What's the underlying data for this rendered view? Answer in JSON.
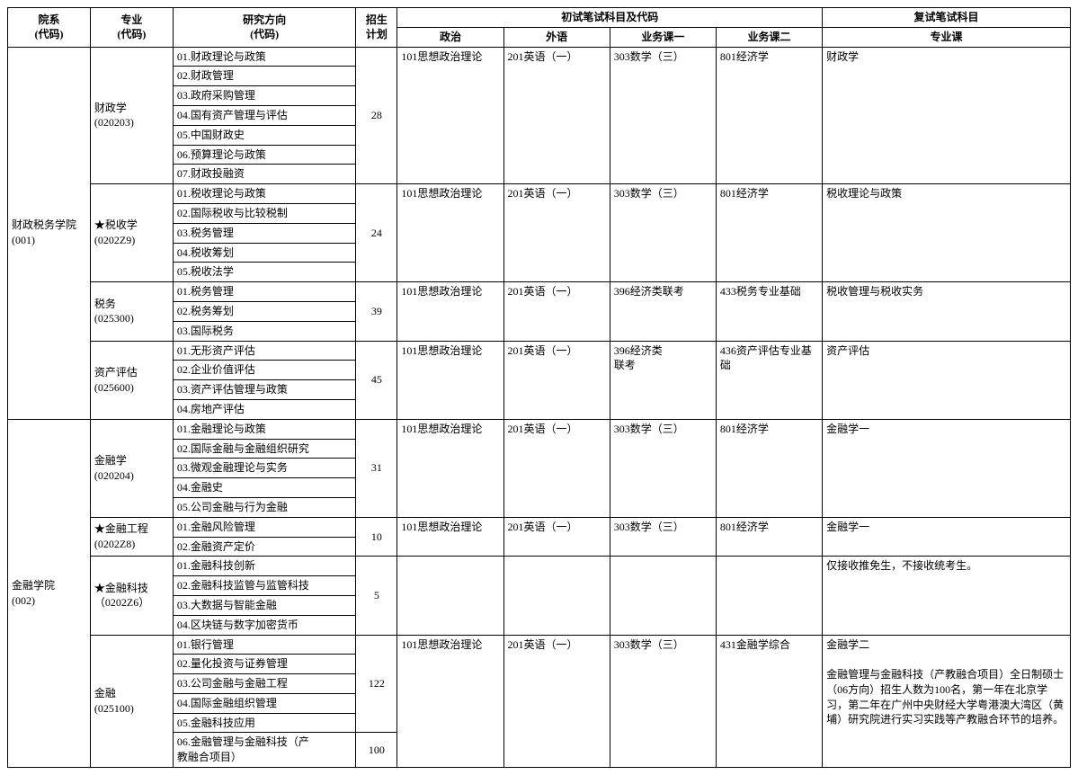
{
  "headers": {
    "dept": "院系\n(代码)",
    "major": "专业\n(代码)",
    "direction": "研究方向\n(代码)",
    "plan": "招生\n计划",
    "prelim_group": "初试笔试科目及代码",
    "politics": "政治",
    "foreign": "外语",
    "course1": "业务课一",
    "course2": "业务课二",
    "retest_group": "复试笔试科目",
    "retest": "专业课"
  },
  "depts": [
    {
      "name": "财政税务学院\n(001)",
      "majors": [
        {
          "name": "财政学\n(020203)",
          "plan": "28",
          "subjects": [
            "101思想政治理论",
            "201英语（一）",
            "303数学（三）",
            "801经济学"
          ],
          "retest": "财政学",
          "directions": [
            "01.财政理论与政策",
            "02.财政管理",
            "03.政府采购管理",
            "04.国有资产管理与评估",
            "05.中国财政史",
            "06.预算理论与政策",
            "07.财政投融资"
          ]
        },
        {
          "name": "★税收学\n(0202Z9)",
          "plan": "24",
          "subjects": [
            "101思想政治理论",
            "201英语（一）",
            "303数学（三）",
            "801经济学"
          ],
          "retest": "税收理论与政策",
          "directions": [
            "01.税收理论与政策",
            "02.国际税收与比较税制",
            "03.税务管理",
            "04.税收筹划",
            "05.税收法学"
          ]
        },
        {
          "name": "税务\n(025300)",
          "plan": "39",
          "subjects": [
            "101思想政治理论",
            "201英语（一）",
            "396经济类联考",
            "433税务专业基础"
          ],
          "retest": "税收管理与税收实务",
          "directions": [
            "01.税务管理",
            "02.税务筹划",
            "03.国际税务"
          ]
        },
        {
          "name": "资产评估\n(025600)",
          "plan": "45",
          "subjects": [
            "101思想政治理论",
            "201英语（一）",
            "396经济类\n联考",
            "436资产评估专业基\n础"
          ],
          "retest": "资产评估",
          "directions": [
            "01.无形资产评估",
            "02.企业价值评估",
            "03.资产评估管理与政策",
            "04.房地产评估"
          ]
        }
      ]
    },
    {
      "name": "金融学院\n(002)",
      "majors": [
        {
          "name": "金融学\n(020204)",
          "plan": "31",
          "subjects": [
            "101思想政治理论",
            "201英语（一）",
            "303数学（三）",
            "801经济学"
          ],
          "retest": "金融学一",
          "directions": [
            "01.金融理论与政策",
            "02.国际金融与金融组织研究",
            "03.微观金融理论与实务",
            "04.金融史",
            "05.公司金融与行为金融"
          ]
        },
        {
          "name": "★金融工程\n(0202Z8)",
          "plan": "10",
          "subjects": [
            "101思想政治理论",
            "201英语（一）",
            "303数学（三）",
            "801经济学"
          ],
          "retest": "金融学一",
          "directions": [
            "01.金融风险管理",
            "02.金融资产定价"
          ]
        },
        {
          "name": "★金融科技\n（0202Z6）",
          "plan": "5",
          "subjects": [
            "",
            "",
            "",
            ""
          ],
          "retest": "仅接收推免生，不接收统考生。",
          "directions": [
            "01.金融科技创新",
            "02.金融科技监管与监管科技",
            "03.大数据与智能金融",
            "04.区块链与数字加密货币"
          ]
        },
        {
          "name": "金融\n(025100)",
          "plan_groups": [
            {
              "plan": "122",
              "directions": [
                "01.银行管理",
                "02.量化投资与证券管理",
                "03.公司金融与金融工程",
                "04.国际金融组织管理",
                "05.金融科技应用"
              ]
            },
            {
              "plan": "100",
              "directions": [
                "06.金融管理与金融科技（产\n教融合项目）"
              ]
            }
          ],
          "subjects": [
            "101思想政治理论",
            "201英语（一）",
            "303数学（三）",
            "431金融学综合"
          ],
          "retest": "金融学二\n\n金融管理与金融科技（产教融合项目）全日制硕士（06方向）招生人数为100名，第一年在北京学习，第二年在广州中央财经大学粤港澳大湾区（黄埔）研究院进行实习实践等产教融合环节的培养。"
        }
      ]
    }
  ]
}
